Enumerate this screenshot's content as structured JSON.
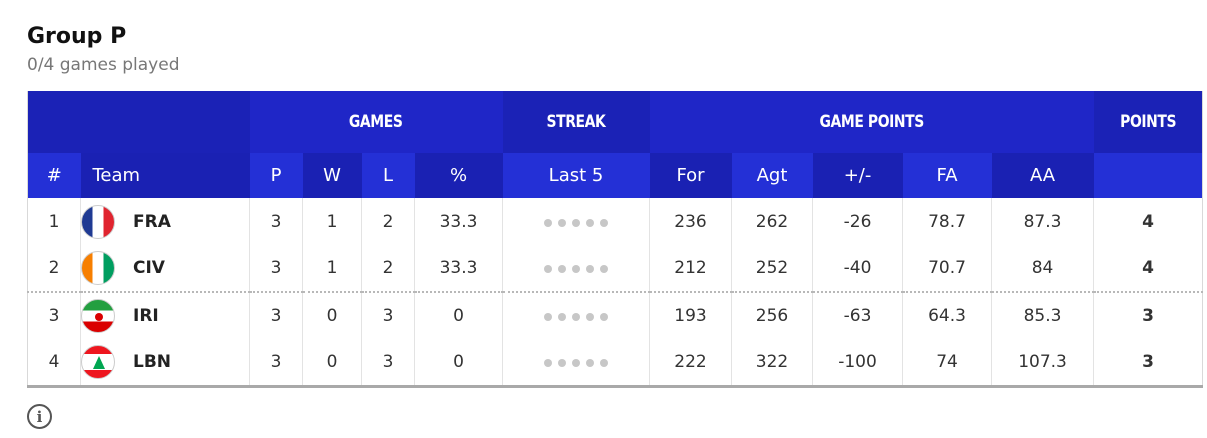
{
  "group": {
    "title": "Group P",
    "subtitle": "0/4 games played"
  },
  "group_headers": {
    "games": "GAMES",
    "streak": "STREAK",
    "game_points": "GAME POINTS",
    "points": "POINTS"
  },
  "columns": {
    "rank": "#",
    "team": "Team",
    "p": "P",
    "w": "W",
    "l": "L",
    "pct": "%",
    "last5": "Last 5",
    "for": "For",
    "agt": "Agt",
    "diff": "+/-",
    "fa": "FA",
    "aa": "AA"
  },
  "rows": [
    {
      "rank": "1",
      "team": "FRA",
      "flag": "france-flag-icon",
      "p": "3",
      "w": "1",
      "l": "2",
      "pct": "33.3",
      "for": "236",
      "agt": "262",
      "diff": "-26",
      "fa": "78.7",
      "aa": "87.3",
      "pts": "4"
    },
    {
      "rank": "2",
      "team": "CIV",
      "flag": "cote-divoire-flag-icon",
      "p": "3",
      "w": "1",
      "l": "2",
      "pct": "33.3",
      "for": "212",
      "agt": "252",
      "diff": "-40",
      "fa": "70.7",
      "aa": "84",
      "pts": "4"
    },
    {
      "rank": "3",
      "team": "IRI",
      "flag": "iran-flag-icon",
      "p": "3",
      "w": "0",
      "l": "3",
      "pct": "0",
      "for": "193",
      "agt": "256",
      "diff": "-63",
      "fa": "64.3",
      "aa": "85.3",
      "pts": "3"
    },
    {
      "rank": "4",
      "team": "LBN",
      "flag": "lebanon-flag-icon",
      "p": "3",
      "w": "0",
      "l": "3",
      "pct": "0",
      "for": "222",
      "agt": "322",
      "diff": "-100",
      "fa": "74",
      "aa": "107.3",
      "pts": "3"
    }
  ],
  "colors": {
    "header_primary": "#1f26c7",
    "header_column": "#2430d6",
    "header_alt": "#1a21b3",
    "streak_dot": "#c7c7c7"
  },
  "icons": {
    "info": "info-circle-icon"
  }
}
